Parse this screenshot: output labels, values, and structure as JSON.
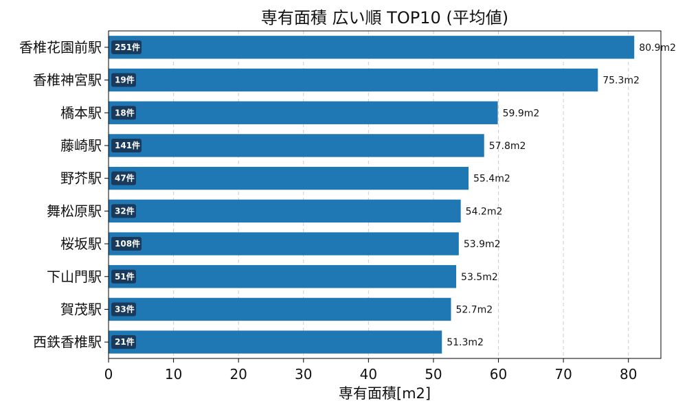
{
  "chart_data": {
    "type": "bar",
    "orientation": "horizontal",
    "title": "専有面積 広い順 TOP10 (平均値)",
    "xlabel": "専有面積[m2]",
    "ylabel": "",
    "xlim": [
      0,
      85
    ],
    "xticks": [
      "0",
      "10",
      "20",
      "30",
      "40",
      "50",
      "60",
      "70",
      "80"
    ],
    "grid": "x, dashed",
    "bar_color": "#1f77b4",
    "count_badge_color": "#1a3a5c",
    "categories": [
      "香椎花園前駅",
      "香椎神宮駅",
      "橋本駅",
      "藤崎駅",
      "野芥駅",
      "舞松原駅",
      "桜坂駅",
      "下山門駅",
      "賀茂駅",
      "西鉄香椎駅"
    ],
    "values": [
      80.9,
      75.3,
      59.9,
      57.8,
      55.4,
      54.2,
      53.9,
      53.5,
      52.7,
      51.3
    ],
    "value_labels": [
      "80.9m2",
      "75.3m2",
      "59.9m2",
      "57.8m2",
      "55.4m2",
      "54.2m2",
      "53.9m2",
      "53.5m2",
      "52.7m2",
      "51.3m2"
    ],
    "counts": [
      "251件",
      "19件",
      "18件",
      "141件",
      "47件",
      "32件",
      "108件",
      "51件",
      "33件",
      "21件"
    ]
  }
}
